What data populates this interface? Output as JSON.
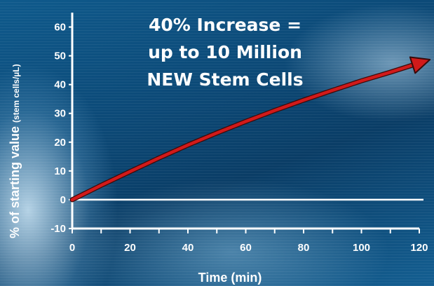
{
  "chart_data": {
    "type": "line",
    "title_lines": [
      "40% Increase =",
      "up to 10 Million",
      "NEW Stem Cells"
    ],
    "xlabel": "Time (min)",
    "ylabel": "% of starting value",
    "ylabel_unit": "(stem cells/µL)",
    "xlim": [
      0,
      120
    ],
    "ylim": [
      -10,
      65
    ],
    "x_ticks": [
      0,
      20,
      40,
      60,
      80,
      100,
      120
    ],
    "y_ticks": [
      -10,
      0,
      10,
      20,
      30,
      40,
      50,
      60
    ],
    "series": [
      {
        "color": "#d11a1a",
        "x": [
          0,
          10,
          20,
          30,
          40,
          50,
          60,
          70,
          80,
          90,
          100,
          110,
          120
        ],
        "y": [
          0,
          5,
          9.8,
          14.5,
          19,
          23.2,
          27.2,
          31,
          34.6,
          38,
          41.3,
          44.3,
          47.5
        ]
      }
    ],
    "zero_line": true,
    "grid": false
  }
}
